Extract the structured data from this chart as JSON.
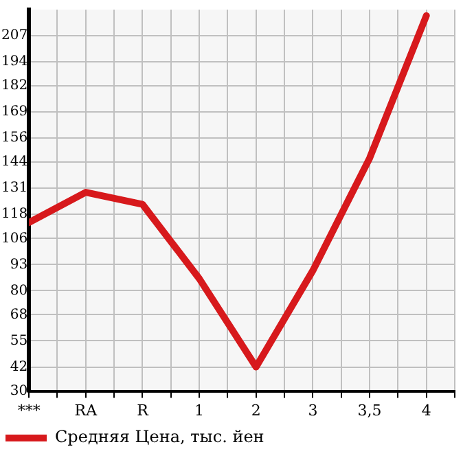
{
  "chart_data": {
    "type": "line",
    "categories": [
      "***",
      "RA",
      "R",
      "1",
      "2",
      "3",
      "3,5",
      "4"
    ],
    "series": [
      {
        "name": "Средняя Цена, тыс. йен",
        "color": "#d7191c",
        "values": [
          114,
          129,
          123,
          86,
          42,
          90,
          146,
          217
        ]
      }
    ],
    "ylim": [
      30,
      220
    ],
    "yticks": [
      30,
      42,
      55,
      68,
      80,
      93,
      106,
      118,
      131,
      144,
      156,
      169,
      182,
      194,
      207
    ],
    "grid": true,
    "legend": "bottom",
    "marker": "none",
    "line_style": "solid"
  }
}
